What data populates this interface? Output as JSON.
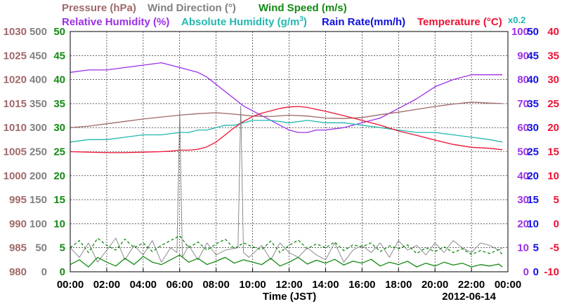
{
  "chart_data": {
    "type": "line",
    "legend": {
      "row1": [
        {
          "key": "pressure",
          "text": "Pressure (hPa)",
          "color": "#a06868"
        },
        {
          "key": "wind_direction",
          "text": "Wind Direction (°)",
          "color": "#808080"
        },
        {
          "key": "wind_speed",
          "text": "Wind Speed (m/s)",
          "color": "#138a13"
        }
      ],
      "row2": [
        {
          "key": "relative_humidity",
          "text": "Relative Humidity (%)",
          "color": "#9b30e6"
        },
        {
          "key": "absolute_humidity",
          "text": "Absolute Humidity (g/m",
          "sup": "3",
          "tail": ")",
          "color": "#22b8b0"
        },
        {
          "key": "rain_rate",
          "text": "Rain Rate(mm/h)",
          "color": "#1010e0"
        },
        {
          "key": "temperature",
          "text": "Temperature (°C)",
          "color": "#ee1133"
        }
      ],
      "absolute_humidity_factor": "x0.2"
    },
    "xlabel": "Time (JST)",
    "date": "2012-06-14",
    "x_ticks": [
      "00:00",
      "02:00",
      "04:00",
      "06:00",
      "08:00",
      "10:00",
      "12:00",
      "14:00",
      "16:00",
      "18:00",
      "20:00",
      "22:00",
      "00:00"
    ],
    "axes": {
      "pressure": {
        "ticks": [
          "1030",
          "1025",
          "1020",
          "1015",
          "1010",
          "1005",
          "1000",
          "995",
          "990",
          "985",
          "980"
        ],
        "range": [
          980,
          1030
        ],
        "color": "#a06868"
      },
      "wind_direction": {
        "ticks": [
          "500",
          "450",
          "400",
          "350",
          "300",
          "250",
          "200",
          "150",
          "100",
          "50",
          "0"
        ],
        "range": [
          0,
          500
        ],
        "color": "#808080"
      },
      "wind_speed": {
        "ticks": [
          "50",
          "45",
          "40",
          "35",
          "30",
          "25",
          "20",
          "15",
          "10",
          "5",
          "0"
        ],
        "range": [
          0,
          50
        ],
        "color": "#138a13"
      },
      "relative_humidity": {
        "ticks": [
          "100",
          "90",
          "80",
          "70",
          "60",
          "50",
          "40",
          "30",
          "20",
          "10",
          "0"
        ],
        "range": [
          0,
          100
        ],
        "color": "#9b30e6"
      },
      "rain_rate": {
        "ticks": [
          "50",
          "45",
          "40",
          "35",
          "30",
          "25",
          "20",
          "15",
          "10",
          "5",
          "0"
        ],
        "range": [
          0,
          50
        ],
        "color": "#1010e0"
      },
      "temperature": {
        "ticks": [
          "40",
          "35",
          "30",
          "25",
          "20",
          "15",
          "10",
          "5",
          "0",
          "-5",
          "-10"
        ],
        "range": [
          -10,
          40
        ],
        "color": "#ee1133"
      }
    },
    "x_range_hours": [
      0,
      24
    ],
    "grid": true,
    "series": [
      {
        "name": "Relative Humidity (%)",
        "color": "#9b30e6",
        "axis": "relative_humidity",
        "x": [
          0,
          1,
          2,
          3,
          4,
          5,
          5.5,
          6,
          6.5,
          7,
          7.5,
          8,
          8.5,
          9,
          9.5,
          10,
          10.5,
          11,
          11.5,
          12,
          12.5,
          13,
          13.5,
          14,
          15,
          16,
          17,
          18,
          19,
          20,
          21,
          22,
          23,
          23.7
        ],
        "values": [
          83,
          84,
          84,
          85,
          86,
          87,
          86,
          85,
          84,
          83,
          81,
          78,
          75,
          72,
          69,
          67,
          65,
          63,
          61,
          59,
          58,
          58,
          59,
          59,
          60,
          62,
          64,
          68,
          72,
          77,
          80,
          82,
          82,
          82
        ]
      },
      {
        "name": "Absolute Humidity x0.2",
        "color": "#22b8b0",
        "axis": "relative_humidity",
        "x": [
          0,
          1,
          2,
          3,
          4,
          5,
          6,
          6.5,
          7,
          7.5,
          8,
          8.5,
          9,
          9.5,
          10,
          11,
          12,
          13,
          14,
          15,
          16,
          17,
          18,
          19,
          20,
          21,
          22,
          23,
          23.7
        ],
        "values": [
          54,
          55,
          55,
          56,
          57,
          57,
          58,
          58,
          59,
          59,
          60,
          61,
          61,
          62,
          63,
          63,
          62,
          63,
          62,
          62,
          61,
          60,
          59,
          58,
          58,
          57,
          56,
          55,
          54
        ]
      },
      {
        "name": "Pressure (hPa)",
        "color": "#a06868",
        "axis": "pressure",
        "x": [
          0,
          1,
          2,
          3,
          4,
          5,
          6,
          7,
          8,
          9,
          10,
          11,
          12,
          13,
          14,
          15,
          16,
          17,
          18,
          19,
          20,
          21,
          22,
          23,
          23.7
        ],
        "values": [
          1010.0,
          1010.3,
          1010.8,
          1011.3,
          1011.8,
          1012.2,
          1012.6,
          1012.9,
          1013.1,
          1012.8,
          1012.4,
          1012.3,
          1012.6,
          1012.4,
          1012.0,
          1011.9,
          1012.1,
          1012.7,
          1013.2,
          1013.8,
          1014.4,
          1014.9,
          1015.3,
          1015.1,
          1015.0
        ]
      },
      {
        "name": "Temperature (°C)",
        "color": "#ee1133",
        "axis": "temperature",
        "x": [
          0,
          1,
          2,
          3,
          4,
          5,
          5.5,
          6,
          6.5,
          7,
          7.5,
          8,
          8.5,
          9,
          9.5,
          10,
          10.5,
          11,
          11.5,
          12,
          12.5,
          13,
          13.5,
          14,
          15,
          16,
          17,
          18,
          19,
          20,
          21,
          22,
          23,
          23.7
        ],
        "values": [
          15.0,
          14.9,
          14.8,
          14.8,
          14.9,
          15.0,
          15.1,
          15.3,
          15.3,
          15.5,
          16.0,
          17.0,
          18.5,
          20.0,
          21.3,
          22.3,
          23.0,
          23.5,
          24.0,
          24.3,
          24.4,
          24.2,
          23.8,
          23.4,
          22.5,
          21.5,
          20.5,
          19.3,
          18.4,
          17.4,
          16.5,
          15.9,
          15.7,
          15.4
        ]
      },
      {
        "name": "Wind Direction (°)",
        "color": "#808080",
        "axis": "wind_direction",
        "x": [
          0,
          0.5,
          1,
          1.5,
          2,
          2.5,
          3,
          3.5,
          4,
          4.5,
          5,
          5.5,
          5.85,
          6.0,
          6.15,
          6.5,
          7,
          7.5,
          8,
          8.5,
          9.2,
          9.35,
          9.5,
          9.8,
          10.5,
          11,
          11.5,
          12,
          12.5,
          13,
          13.5,
          14,
          14.5,
          15,
          15.5,
          16,
          16.5,
          17,
          17.5,
          18,
          18.5,
          19,
          19.5,
          20,
          20.5,
          21,
          21.5,
          22,
          22.5,
          23,
          23.5,
          23.7
        ],
        "values": [
          50,
          30,
          60,
          20,
          45,
          70,
          25,
          55,
          35,
          65,
          20,
          50,
          40,
          335,
          30,
          55,
          25,
          60,
          35,
          45,
          50,
          345,
          40,
          30,
          55,
          25,
          60,
          40,
          30,
          50,
          35,
          25,
          60,
          20,
          45,
          55,
          40,
          60,
          30,
          65,
          45,
          55,
          35,
          60,
          40,
          65,
          50,
          40,
          60,
          55,
          45,
          50
        ]
      },
      {
        "name": "Wind Speed (m/s)",
        "color": "#138a13",
        "axis": "wind_speed",
        "x": [
          0,
          0.5,
          1,
          1.5,
          2,
          2.5,
          3,
          3.5,
          4,
          4.5,
          5,
          5.5,
          6,
          6.5,
          7,
          7.5,
          8,
          8.5,
          9,
          9.5,
          10,
          10.5,
          11,
          11.5,
          12,
          12.5,
          13,
          13.5,
          14,
          14.5,
          15,
          15.5,
          16,
          16.5,
          17,
          17.5,
          18,
          18.5,
          19,
          19.5,
          20,
          20.5,
          21,
          21.5,
          22,
          22.5,
          23,
          23.5,
          23.7
        ],
        "values": [
          1.5,
          2.5,
          1.0,
          3.0,
          2.0,
          1.2,
          2.8,
          1.5,
          3.2,
          2.0,
          1.5,
          2.5,
          3.5,
          2.0,
          2.8,
          1.5,
          2.2,
          3.0,
          1.8,
          2.5,
          2.0,
          1.5,
          2.8,
          1.2,
          2.0,
          3.0,
          1.6,
          2.4,
          1.8,
          2.6,
          1.4,
          2.2,
          1.8,
          2.6,
          1.2,
          2.0,
          1.5,
          2.2,
          1.0,
          1.8,
          1.2,
          2.0,
          1.4,
          1.8,
          1.0,
          1.5,
          1.2,
          1.6,
          1.0
        ]
      },
      {
        "name": "Wind Speed gust (m/s)",
        "color": "#138a13",
        "axis": "wind_speed",
        "dashed": true,
        "x": [
          0,
          0.5,
          1,
          1.5,
          2,
          2.5,
          3,
          3.5,
          4,
          4.5,
          5,
          5.5,
          6,
          6.5,
          7,
          7.5,
          8,
          8.5,
          9,
          9.5,
          10,
          10.5,
          11,
          11.5,
          12,
          12.5,
          13,
          13.5,
          14,
          14.5,
          15,
          15.5,
          16,
          16.5,
          17,
          17.5,
          18,
          18.5,
          19,
          19.5,
          20,
          20.5,
          21,
          21.5,
          22,
          22.5,
          23,
          23.5,
          23.7
        ],
        "values": [
          5.0,
          6.5,
          4.0,
          7.0,
          5.5,
          4.5,
          6.8,
          5.0,
          6.0,
          4.2,
          5.5,
          6.5,
          7.5,
          5.0,
          6.2,
          4.5,
          5.8,
          6.8,
          4.8,
          6.0,
          5.2,
          4.6,
          6.4,
          4.0,
          5.5,
          6.6,
          4.8,
          5.8,
          5.0,
          6.2,
          4.4,
          5.6,
          5.2,
          6.0,
          4.2,
          5.4,
          4.8,
          5.6,
          3.8,
          5.0,
          4.2,
          5.2,
          4.0,
          4.8,
          3.6,
          4.4,
          3.8,
          4.6,
          3.5
        ]
      }
    ]
  }
}
